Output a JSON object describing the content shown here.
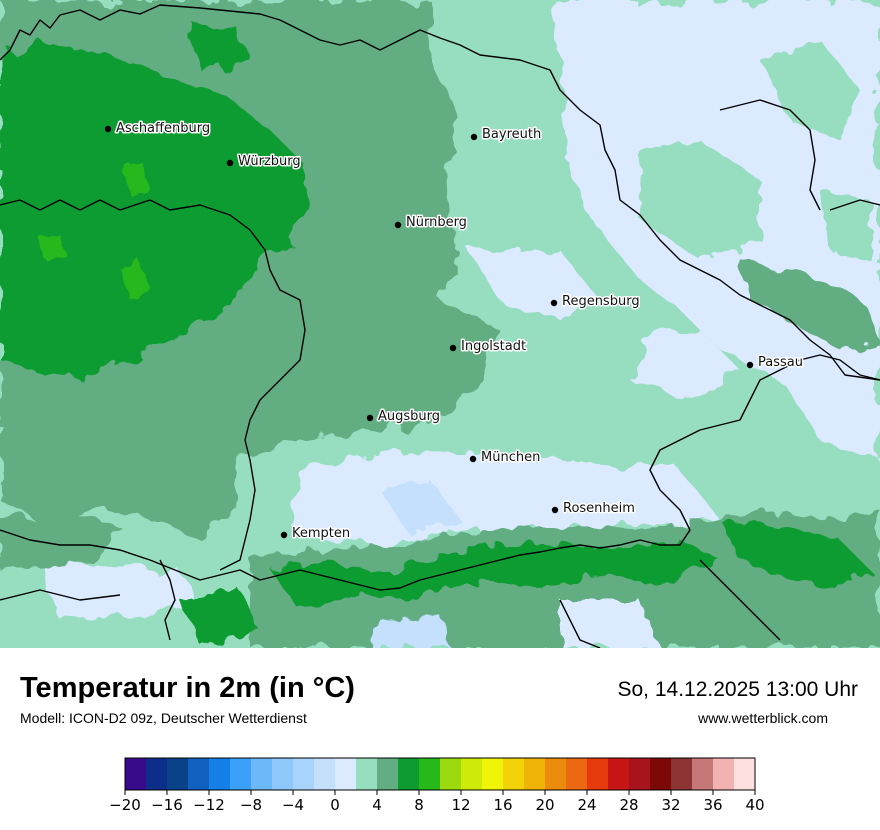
{
  "map": {
    "region": "Bayern",
    "cities": [
      {
        "name": "Aschaffenburg"
      },
      {
        "name": "Würzburg"
      },
      {
        "name": "Bayreuth"
      },
      {
        "name": "Nürnberg"
      },
      {
        "name": "Regensburg"
      },
      {
        "name": "Ingolstadt"
      },
      {
        "name": "Passau"
      },
      {
        "name": "Augsburg"
      },
      {
        "name": "München"
      },
      {
        "name": "Rosenheim"
      },
      {
        "name": "Kempten"
      }
    ]
  },
  "footer": {
    "title": "Temperatur in 2m (in °C)",
    "subtitle": "Modell: ICON-D2 09z, Deutscher Wetterdienst",
    "datetime": "So, 14.12.2025 13:00 Uhr",
    "website": "www.wetterblick.com"
  },
  "legend": {
    "colors": [
      "#3a0a8c",
      "#0c2d8a",
      "#0a428a",
      "#1260c0",
      "#1480e8",
      "#3aa0f8",
      "#6cb8f8",
      "#8ec8fa",
      "#a8d4fc",
      "#c4e0fc",
      "#dbeaff",
      "#97ddc0",
      "#62ad82",
      "#0e9c32",
      "#27b81a",
      "#9cd90e",
      "#cdea08",
      "#f0f408",
      "#f2d208",
      "#f0b408",
      "#ec8c0c",
      "#ec6812",
      "#e63a0c",
      "#c81616",
      "#a8141e",
      "#7c0808",
      "#8c3434",
      "#c67878",
      "#f2b2b2",
      "#ffe0e0"
    ],
    "ticks": [
      "−20",
      "−16",
      "−12",
      "−8",
      "−4",
      "0",
      "4",
      "8",
      "12",
      "16",
      "20",
      "24",
      "28",
      "32",
      "36",
      "40"
    ]
  }
}
